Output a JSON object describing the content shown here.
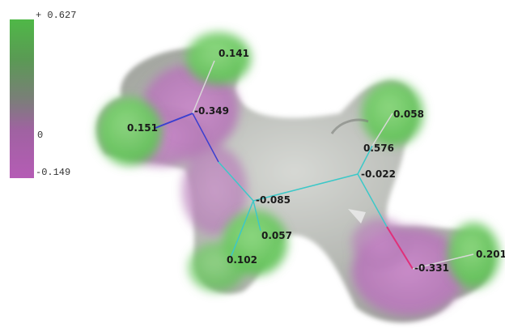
{
  "color_scale": {
    "max_label": "+ 0.627",
    "mid_label": "0",
    "min_label": "-0.149",
    "colors": {
      "positive": "#4fb847",
      "neutral": "#7a7f78",
      "negative": "#b55cb5"
    }
  },
  "atoms": [
    {
      "id": "h-top",
      "charge": "0.141",
      "sign": "positive"
    },
    {
      "id": "n-left",
      "charge": "-0.349",
      "sign": "negative"
    },
    {
      "id": "h-left",
      "charge": "0.151",
      "sign": "positive"
    },
    {
      "id": "c-center",
      "charge": "-0.085",
      "sign": "negative"
    },
    {
      "id": "h-bottom-right",
      "charge": "0.057",
      "sign": "positive"
    },
    {
      "id": "h-bottom-left",
      "charge": "0.102",
      "sign": "positive"
    },
    {
      "id": "h-upper-right",
      "charge": "0.058",
      "sign": "positive"
    },
    {
      "id": "c-right-upper",
      "charge": "0.576",
      "sign": "positive"
    },
    {
      "id": "c-right",
      "charge": "-0.022",
      "sign": "negative"
    },
    {
      "id": "o-bottom",
      "charge": "-0.331",
      "sign": "negative"
    },
    {
      "id": "h-far-right",
      "charge": "0.201",
      "sign": "positive"
    }
  ],
  "bond_colors": {
    "nitrogen": "#3a3fd0",
    "carbon": "#3cc8c8",
    "oxygen": "#e0307a",
    "hydrogen": "#d8d8d8"
  }
}
